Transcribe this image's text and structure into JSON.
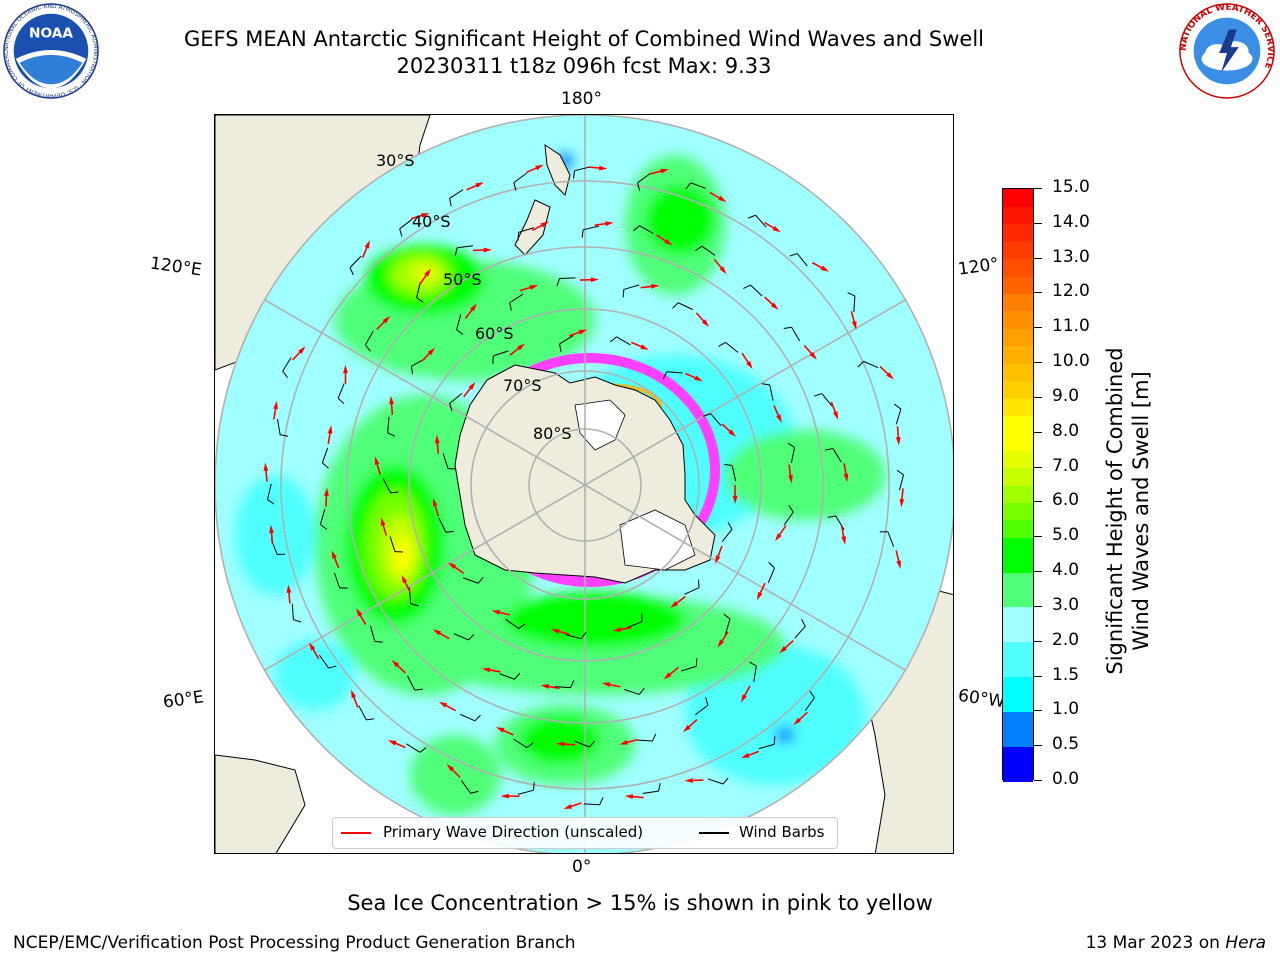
{
  "header": {
    "title_line1": "GEFS MEAN Antarctic Significant Height of Combined Wind Waves and Swell",
    "title_line2": "20230311 t18z 096h fcst   Max: 9.33"
  },
  "logos": {
    "left": {
      "name": "NOAA",
      "text": "NOAA",
      "ring_text": "NATIONAL OCEANIC AND ATMOSPHERIC ADMINISTRATION · U.S. DEPARTMENT OF COMMERCE"
    },
    "right": {
      "name": "NWS",
      "ring_text": "NATIONAL WEATHER SERVICE"
    }
  },
  "map": {
    "projection": "south-polar-stereographic",
    "longitude_labels": {
      "top": "180°",
      "bottom": "0°",
      "upper_left": "120°E",
      "upper_right": "120°",
      "lower_left": "60°E",
      "lower_right": "60°W"
    },
    "latitude_labels": [
      "30°S",
      "40°S",
      "50°S",
      "60°S",
      "70°S",
      "80°S"
    ],
    "colors": {
      "ocean_base": "#a0ffff",
      "land": "#eeecdc",
      "sea_ice": "#ff40ff",
      "wave_arrow": "#ff0000",
      "wind_barb": "#000000",
      "gridline": "#b0b0b0"
    },
    "max_wave_height_m": 9.33
  },
  "colorbar": {
    "title_line1": "Significant Height of Combined",
    "title_line2": "Wind Waves and Swell [m]",
    "ticks": [
      "0.0",
      "0.5",
      "1.0",
      "1.5",
      "2.0",
      "3.0",
      "4.0",
      "5.0",
      "6.0",
      "7.0",
      "8.0",
      "9.0",
      "10.0",
      "11.0",
      "12.0",
      "13.0",
      "14.0",
      "15.0"
    ],
    "levels": [
      0,
      0.5,
      1,
      1.5,
      2,
      3,
      4,
      5,
      5.5,
      6,
      6.5,
      7,
      7.5,
      8,
      8.5,
      9,
      9.5,
      10,
      10.5,
      11,
      11.5,
      12,
      12.5,
      13,
      13.5,
      14,
      14.5,
      15
    ],
    "colors": [
      "#0000ff",
      "#0080ff",
      "#00ffff",
      "#50ffff",
      "#a0ffff",
      "#50ff78",
      "#00ff00",
      "#50ff00",
      "#78ff00",
      "#a0ff00",
      "#c8ff00",
      "#e6ff00",
      "#ffff00",
      "#ffff00",
      "#ffe600",
      "#ffd000",
      "#ffc000",
      "#ffb000",
      "#ffa000",
      "#ff9000",
      "#ff8000",
      "#ff6400",
      "#ff5000",
      "#ff3c00",
      "#ff2800",
      "#ff1400",
      "#ff0000"
    ]
  },
  "legend": {
    "wave_label": "Primary Wave Direction (unscaled)",
    "wind_label": "Wind Barbs"
  },
  "notes": {
    "sea_ice": "Sea Ice Concentration > 15% is shown in pink to yellow"
  },
  "footer": {
    "left": "NCEP/EMC/Verification Post Processing Product Generation Branch",
    "right_date": "13 Mar 2023 on",
    "right_host": "Hera"
  }
}
